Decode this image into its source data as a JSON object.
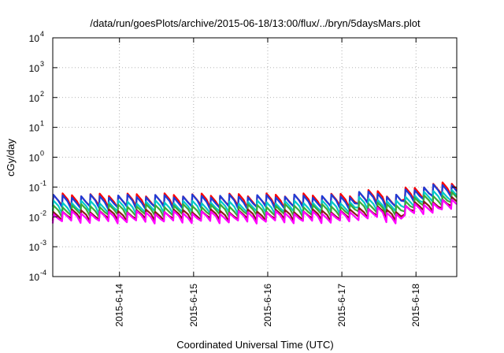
{
  "chart_data": {
    "type": "line",
    "title": "/data/run/goesPlots/archive/2015-06-18/13:00/flux/../bryn/5daysMars.plot",
    "xlabel": "Coordinated Universal Time (UTC)",
    "ylabel": "cGy/day",
    "yscale": "log",
    "ylim_exponents": [
      -4,
      4
    ],
    "y_ticks": [
      {
        "base": "10",
        "exp": "-4"
      },
      {
        "base": "10",
        "exp": "-3"
      },
      {
        "base": "10",
        "exp": "-2"
      },
      {
        "base": "10",
        "exp": "-1"
      },
      {
        "base": "10",
        "exp": "0"
      },
      {
        "base": "10",
        "exp": "1"
      },
      {
        "base": "10",
        "exp": "2"
      },
      {
        "base": "10",
        "exp": "3"
      },
      {
        "base": "10",
        "exp": "4"
      }
    ],
    "x_range_days": [
      13.1,
      18.55
    ],
    "x_ticks": [
      {
        "label": "2015-6-14",
        "day": 14
      },
      {
        "label": "2015-6-15",
        "day": 15
      },
      {
        "label": "2015-6-16",
        "day": 16
      },
      {
        "label": "2015-6-17",
        "day": 17
      },
      {
        "label": "2015-6-18",
        "day": 18
      }
    ],
    "grid": true,
    "cycle_days": 0.125,
    "series": [
      {
        "color": "#ff0000",
        "peak": 0.055,
        "trough": 0.022
      },
      {
        "color": "#1c3cd8",
        "peak": 0.05,
        "trough": 0.02
      },
      {
        "color": "#00c8c8",
        "peak": 0.032,
        "trough": 0.014
      },
      {
        "color": "#3aaa3a",
        "peak": 0.024,
        "trough": 0.011
      },
      {
        "color": "#8b1a1a",
        "peak": 0.016,
        "trough": 0.0082
      },
      {
        "color": "#ff00ff",
        "peak": 0.014,
        "trough": 0.0068
      }
    ]
  }
}
